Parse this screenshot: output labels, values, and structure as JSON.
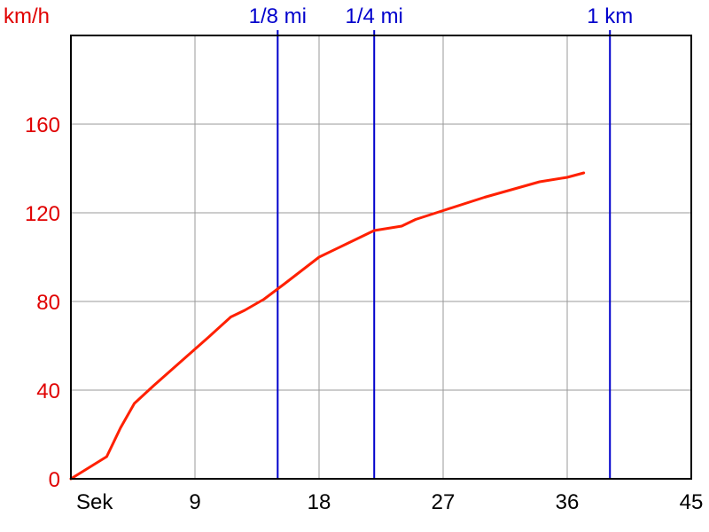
{
  "chart_data": {
    "type": "line",
    "ylabel": "km/h",
    "xlabel": "Sek",
    "xlim": [
      0,
      45
    ],
    "ylim": [
      0,
      200
    ],
    "x_ticks": [
      9,
      18,
      27,
      36,
      45
    ],
    "y_ticks": [
      0,
      40,
      80,
      120,
      160
    ],
    "grid": true,
    "series": [
      {
        "color": "#ff2000",
        "x": [
          0,
          2.6,
          3.6,
          4.6,
          6,
          8,
          10,
          11.6,
          12.6,
          14,
          15.5,
          18,
          20,
          22,
          24,
          25,
          27,
          30,
          34,
          36,
          37.2
        ],
        "y": [
          0,
          10,
          23,
          34,
          42,
          53,
          64,
          73,
          76,
          81,
          88,
          100,
          106,
          112,
          114,
          117,
          121,
          127,
          134,
          136,
          138
        ]
      }
    ],
    "markers": [
      {
        "label": "1/8 mi",
        "x": 15,
        "color": "#0000cc"
      },
      {
        "label": "1/4 mi",
        "x": 22,
        "color": "#0000cc"
      },
      {
        "label": "1 km",
        "x": 39.1,
        "color": "#0000cc"
      }
    ]
  }
}
